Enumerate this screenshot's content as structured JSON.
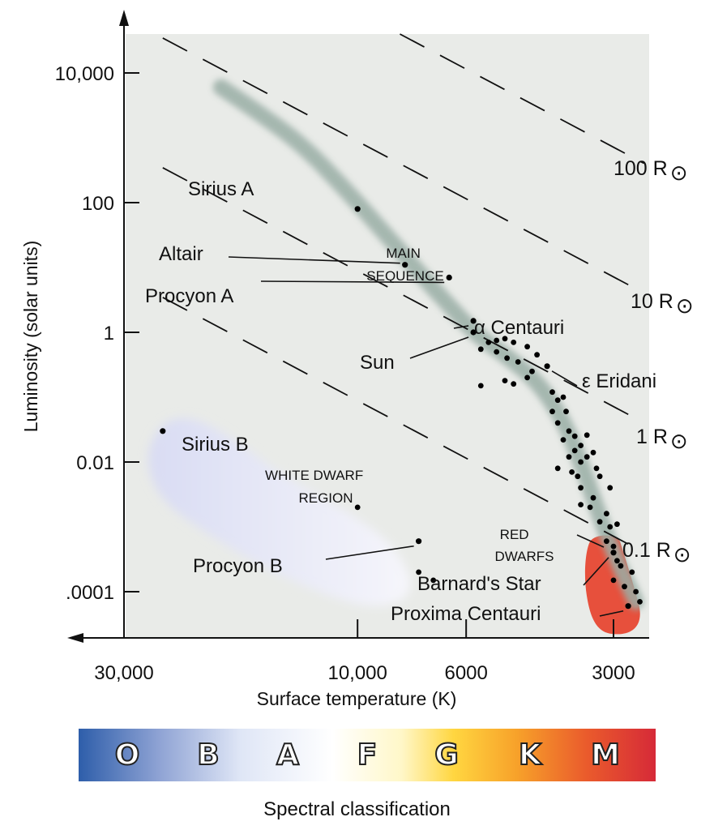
{
  "chart_data": {
    "type": "scatter",
    "title": "",
    "xlabel": "Surface temperature (K)",
    "ylabel": "Luminosity (solar units)",
    "x_scale": "log",
    "x_reversed": true,
    "y_scale": "log",
    "xlim": [
      40000,
      2400
    ],
    "ylim": [
      2.5e-05,
      40000
    ],
    "x_ticks": [
      {
        "value": 30000,
        "label": "30,000"
      },
      {
        "value": 10000,
        "label": "10,000"
      },
      {
        "value": 6000,
        "label": "6000"
      },
      {
        "value": 3000,
        "label": "3000"
      }
    ],
    "y_ticks": [
      {
        "value": 10000,
        "label": "10,000"
      },
      {
        "value": 100,
        "label": "100"
      },
      {
        "value": 1,
        "label": "1"
      },
      {
        "value": 0.01,
        "label": "0.01"
      },
      {
        "value": 0.0001,
        "label": ".0001"
      }
    ],
    "grid": false,
    "named_stars": [
      {
        "name": "Sirius A",
        "temp": 10000,
        "lum": 80
      },
      {
        "name": "Altair",
        "temp": 8000,
        "lum": 11
      },
      {
        "name": "Procyon A",
        "temp": 6500,
        "lum": 7
      },
      {
        "name": "Sun",
        "temp": 5800,
        "lum": 1
      },
      {
        "name": "α Centauri",
        "temp": 5800,
        "lum": 1.5
      },
      {
        "name": "ε Eridani",
        "temp": 4100,
        "lum": 0.3
      },
      {
        "name": "Sirius B",
        "temp": 25000,
        "lum": 0.03
      },
      {
        "name": "Procyon B",
        "temp": 7500,
        "lum": 0.0006
      },
      {
        "name": "Barnard's Star",
        "temp": 3000,
        "lum": 0.0004
      },
      {
        "name": "Proxima Centauri",
        "temp": 2800,
        "lum": 6e-05
      }
    ],
    "other_stars": [
      {
        "temp": 10000,
        "lum": 0.002
      },
      {
        "temp": 7000,
        "lum": 0.00015
      },
      {
        "temp": 7500,
        "lum": 0.0002
      },
      {
        "temp": 5600,
        "lum": 0.55
      },
      {
        "temp": 5400,
        "lum": 0.7
      },
      {
        "temp": 5200,
        "lum": 0.75
      },
      {
        "temp": 5000,
        "lum": 0.8
      },
      {
        "temp": 4800,
        "lum": 0.7
      },
      {
        "temp": 4500,
        "lum": 0.6
      },
      {
        "temp": 5200,
        "lum": 0.5
      },
      {
        "temp": 4950,
        "lum": 0.4
      },
      {
        "temp": 4700,
        "lum": 0.35
      },
      {
        "temp": 5600,
        "lum": 0.15
      },
      {
        "temp": 5000,
        "lum": 0.18
      },
      {
        "temp": 4800,
        "lum": 0.16
      },
      {
        "temp": 4300,
        "lum": 0.45
      },
      {
        "temp": 4500,
        "lum": 0.2
      },
      {
        "temp": 4400,
        "lum": 0.25
      },
      {
        "temp": 4000,
        "lum": 0.12
      },
      {
        "temp": 3900,
        "lum": 0.09
      },
      {
        "temp": 3800,
        "lum": 0.1
      },
      {
        "temp": 4000,
        "lum": 0.06
      },
      {
        "temp": 3900,
        "lum": 0.04
      },
      {
        "temp": 3750,
        "lum": 0.06
      },
      {
        "temp": 3700,
        "lum": 0.03
      },
      {
        "temp": 3600,
        "lum": 0.025
      },
      {
        "temp": 3800,
        "lum": 0.022
      },
      {
        "temp": 3500,
        "lum": 0.018
      },
      {
        "temp": 3400,
        "lum": 0.026
      },
      {
        "temp": 3600,
        "lum": 0.015
      },
      {
        "temp": 3700,
        "lum": 0.012
      },
      {
        "temp": 3500,
        "lum": 0.01
      },
      {
        "temp": 3400,
        "lum": 0.012
      },
      {
        "temp": 3300,
        "lum": 0.014
      },
      {
        "temp": 3900,
        "lum": 0.008
      },
      {
        "temp": 3650,
        "lum": 0.007
      },
      {
        "temp": 3550,
        "lum": 0.006
      },
      {
        "temp": 3250,
        "lum": 0.008
      },
      {
        "temp": 3200,
        "lum": 0.006
      },
      {
        "temp": 3050,
        "lum": 0.004
      },
      {
        "temp": 3500,
        "lum": 0.004
      },
      {
        "temp": 3300,
        "lum": 0.0028
      },
      {
        "temp": 3500,
        "lum": 0.0022
      },
      {
        "temp": 3350,
        "lum": 0.002
      },
      {
        "temp": 3100,
        "lum": 0.0016
      },
      {
        "temp": 3200,
        "lum": 0.0012
      },
      {
        "temp": 3050,
        "lum": 0.001
      },
      {
        "temp": 2950,
        "lum": 0.0011
      },
      {
        "temp": 3100,
        "lum": 0.0006
      },
      {
        "temp": 3000,
        "lum": 0.0005
      },
      {
        "temp": 2950,
        "lum": 0.0003
      },
      {
        "temp": 2900,
        "lum": 0.00025
      },
      {
        "temp": 2750,
        "lum": 0.0002
      },
      {
        "temp": 3000,
        "lum": 0.00015
      },
      {
        "temp": 2850,
        "lum": 0.00012
      },
      {
        "temp": 2700,
        "lum": 0.0001
      },
      {
        "temp": 2650,
        "lum": 7e-05
      }
    ],
    "main_sequence_curve": [
      {
        "temp": 19000,
        "lum": 6000
      },
      {
        "temp": 16000,
        "lum": 2500
      },
      {
        "temp": 13000,
        "lum": 800
      },
      {
        "temp": 10500,
        "lum": 150
      },
      {
        "temp": 8500,
        "lum": 25
      },
      {
        "temp": 7200,
        "lum": 6
      },
      {
        "temp": 6300,
        "lum": 2
      },
      {
        "temp": 5700,
        "lum": 0.9
      },
      {
        "temp": 5000,
        "lum": 0.45
      },
      {
        "temp": 4300,
        "lum": 0.18
      },
      {
        "temp": 3800,
        "lum": 0.045
      },
      {
        "temp": 3500,
        "lum": 0.01
      },
      {
        "temp": 3250,
        "lum": 0.002
      },
      {
        "temp": 3000,
        "lum": 0.0004
      },
      {
        "temp": 2700,
        "lum": 7e-05
      }
    ],
    "constant_radius_lines": [
      {
        "label": "100 R",
        "symbol": "⊙"
      },
      {
        "label": "10 R",
        "symbol": "⊙"
      },
      {
        "label": "1 R",
        "symbol": "⊙"
      },
      {
        "label": "0.1 R",
        "symbol": "⊙"
      }
    ],
    "regions": [
      {
        "name": "main-sequence",
        "lines": [
          "MAIN",
          "SEQUENCE"
        ]
      },
      {
        "name": "white-dwarf",
        "lines": [
          "WHITE DWARF",
          "REGION"
        ]
      },
      {
        "name": "red-dwarfs",
        "lines": [
          "RED",
          "DWARFS"
        ]
      }
    ],
    "spectral_classes": [
      "O",
      "B",
      "A",
      "F",
      "G",
      "K",
      "M"
    ],
    "spectral_title": "Spectral classification",
    "colors": {
      "plot_bg": "#e9ebe8",
      "main_sequence": "#9aaea6",
      "white_dwarf": "#dfe2f5",
      "red_dwarf": "#e7503c",
      "star": "#000000"
    }
  }
}
